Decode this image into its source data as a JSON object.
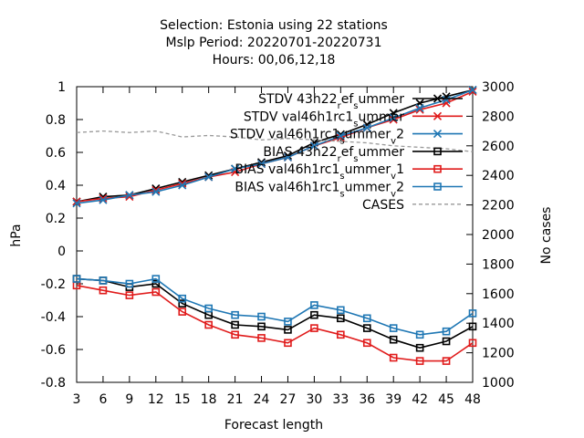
{
  "chart_data": {
    "type": "line",
    "title_lines": [
      "Selection: Estonia using     22 stations",
      "Mslp   Period: 20220701-20220731",
      "Hours:  00,06,12,18"
    ],
    "xlabel": "Forecast length",
    "ylabel": "hPa",
    "y2label": "No cases",
    "x": [
      3,
      6,
      9,
      12,
      15,
      18,
      21,
      24,
      27,
      30,
      33,
      36,
      39,
      42,
      45,
      48
    ],
    "xlim": [
      3,
      48
    ],
    "ylim": [
      -0.8,
      1
    ],
    "y2lim": [
      1000,
      3000
    ],
    "yticks": [
      -0.8,
      -0.6,
      -0.4,
      -0.2,
      0,
      0.2,
      0.4,
      0.6,
      0.8,
      1
    ],
    "y2ticks": [
      1000,
      1200,
      1400,
      1600,
      1800,
      2000,
      2200,
      2400,
      2600,
      2800,
      3000
    ],
    "legend_position": "top-right",
    "grid": false,
    "series": [
      {
        "name": "STDV 43h22_ref_summer",
        "legend_base": "STDV 43h22",
        "legend_parts": [
          [
            "_",
            "r"
          ],
          [
            "",
            "ef"
          ],
          [
            "_",
            "s"
          ],
          [
            "",
            "ummer"
          ]
        ],
        "color": "#000000",
        "marker": "x",
        "axis": "y",
        "values": [
          0.3,
          0.33,
          0.34,
          0.38,
          0.42,
          0.46,
          0.5,
          0.54,
          0.58,
          0.66,
          0.71,
          0.77,
          0.84,
          0.9,
          0.94,
          0.98
        ]
      },
      {
        "name": "STDV val46h1rc1_summer",
        "legend_base": "STDV val46h1rc1",
        "legend_parts": [
          [
            "_",
            "s"
          ],
          [
            "",
            "ummer"
          ]
        ],
        "color": "#e01b1b",
        "marker": "x",
        "axis": "y",
        "values": [
          0.3,
          0.32,
          0.33,
          0.37,
          0.41,
          0.45,
          0.48,
          0.53,
          0.57,
          0.64,
          0.69,
          0.75,
          0.8,
          0.86,
          0.9,
          0.97
        ]
      },
      {
        "name": "STDV val46h1rc1_summer_v2",
        "legend_base": "STDV val46h1rc1",
        "legend_parts": [
          [
            "_",
            "s"
          ],
          [
            "",
            "ummer"
          ],
          [
            "_",
            "v"
          ],
          [
            "",
            "2"
          ]
        ],
        "color": "#1f77b4",
        "marker": "x",
        "axis": "y",
        "values": [
          0.29,
          0.31,
          0.34,
          0.36,
          0.4,
          0.45,
          0.5,
          0.53,
          0.57,
          0.64,
          0.7,
          0.75,
          0.81,
          0.87,
          0.92,
          0.98
        ]
      },
      {
        "name": "BIAS 43h22_ref_summer",
        "legend_base": "BIAS 43h22",
        "legend_parts": [
          [
            "_",
            "r"
          ],
          [
            "",
            "ef"
          ],
          [
            "_",
            "s"
          ],
          [
            "",
            "ummer"
          ]
        ],
        "color": "#000000",
        "marker": "square",
        "axis": "y",
        "values": [
          -0.17,
          -0.18,
          -0.22,
          -0.2,
          -0.32,
          -0.39,
          -0.45,
          -0.46,
          -0.48,
          -0.39,
          -0.41,
          -0.47,
          -0.54,
          -0.59,
          -0.55,
          -0.46
        ]
      },
      {
        "name": "BIAS val46h1rc1_summer_v1",
        "legend_base": "BIAS val46h1rc1",
        "legend_parts": [
          [
            "_",
            "s"
          ],
          [
            "",
            "ummer"
          ],
          [
            "_",
            "v"
          ],
          [
            "",
            "1"
          ]
        ],
        "color": "#e01b1b",
        "marker": "square",
        "axis": "y",
        "values": [
          -0.21,
          -0.24,
          -0.27,
          -0.25,
          -0.37,
          -0.45,
          -0.51,
          -0.53,
          -0.56,
          -0.47,
          -0.51,
          -0.56,
          -0.65,
          -0.67,
          -0.67,
          -0.56
        ]
      },
      {
        "name": "BIAS val46h1rc1_summer_v2",
        "legend_base": "BIAS val46h1rc1",
        "legend_parts": [
          [
            "_",
            "s"
          ],
          [
            "",
            "ummer"
          ],
          [
            "_",
            "v"
          ],
          [
            "",
            "2"
          ]
        ],
        "color": "#1f77b4",
        "marker": "square",
        "axis": "y",
        "values": [
          -0.17,
          -0.18,
          -0.2,
          -0.17,
          -0.29,
          -0.35,
          -0.39,
          -0.4,
          -0.43,
          -0.33,
          -0.36,
          -0.41,
          -0.47,
          -0.51,
          -0.49,
          -0.38
        ]
      },
      {
        "name": "CASES",
        "legend_base": "CASES",
        "legend_parts": [],
        "color": "#999999",
        "marker": "none",
        "dashed": true,
        "axis": "y2",
        "values": [
          2690,
          2700,
          2690,
          2700,
          2660,
          2670,
          2660,
          2640,
          2650,
          2640,
          2630,
          2620,
          2600,
          2590,
          2580,
          2560
        ]
      }
    ]
  }
}
